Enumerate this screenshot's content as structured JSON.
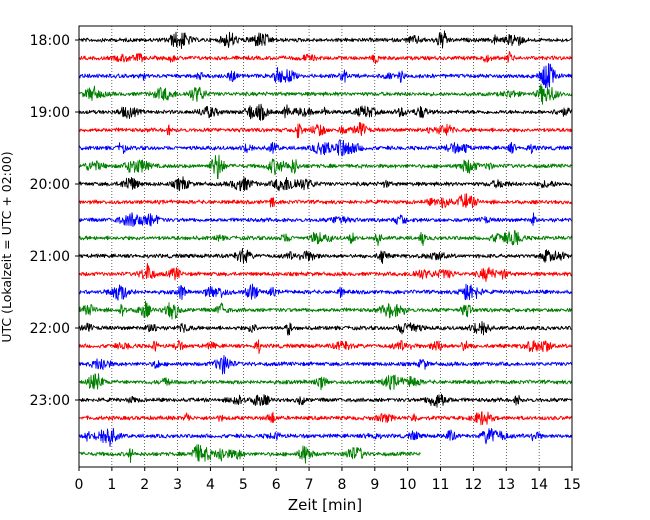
{
  "chart_data": {
    "type": "line",
    "chart_kind": "helicorder",
    "xlabel": "Zeit  [min]",
    "ylabel": "UTC (Lokalzeit = UTC + 02:00)",
    "xlim": [
      0,
      15
    ],
    "x_ticks": [
      "0",
      "1",
      "2",
      "3",
      "4",
      "5",
      "6",
      "7",
      "8",
      "9",
      "10",
      "11",
      "12",
      "13",
      "14",
      "15"
    ],
    "y_tick_labels": [
      "18:00",
      "19:00",
      "20:00",
      "21:00",
      "22:00",
      "23:00"
    ],
    "grid": "vertical dotted lines at each minute",
    "trace_colors": [
      "#000000",
      "#ff0000",
      "#0000ff",
      "#008000"
    ],
    "rows": [
      {
        "start": "18:00",
        "color": "#000000",
        "end_min": 15
      },
      {
        "start": "18:15",
        "color": "#ff0000",
        "end_min": 15
      },
      {
        "start": "18:30",
        "color": "#0000ff",
        "end_min": 15
      },
      {
        "start": "18:45",
        "color": "#008000",
        "end_min": 15
      },
      {
        "start": "19:00",
        "color": "#000000",
        "end_min": 15
      },
      {
        "start": "19:15",
        "color": "#ff0000",
        "end_min": 15
      },
      {
        "start": "19:30",
        "color": "#0000ff",
        "end_min": 15
      },
      {
        "start": "19:45",
        "color": "#008000",
        "end_min": 15
      },
      {
        "start": "20:00",
        "color": "#000000",
        "end_min": 15
      },
      {
        "start": "20:15",
        "color": "#ff0000",
        "end_min": 15
      },
      {
        "start": "20:30",
        "color": "#0000ff",
        "end_min": 15
      },
      {
        "start": "20:45",
        "color": "#008000",
        "end_min": 15
      },
      {
        "start": "21:00",
        "color": "#000000",
        "end_min": 15
      },
      {
        "start": "21:15",
        "color": "#ff0000",
        "end_min": 15
      },
      {
        "start": "21:30",
        "color": "#0000ff",
        "end_min": 15
      },
      {
        "start": "21:45",
        "color": "#008000",
        "end_min": 15
      },
      {
        "start": "22:00",
        "color": "#000000",
        "end_min": 15
      },
      {
        "start": "22:15",
        "color": "#ff0000",
        "end_min": 15
      },
      {
        "start": "22:30",
        "color": "#0000ff",
        "end_min": 15
      },
      {
        "start": "22:45",
        "color": "#008000",
        "end_min": 15
      },
      {
        "start": "23:00",
        "color": "#000000",
        "end_min": 15
      },
      {
        "start": "23:15",
        "color": "#ff0000",
        "end_min": 15
      },
      {
        "start": "23:30",
        "color": "#0000ff",
        "end_min": 15
      },
      {
        "start": "23:45",
        "color": "#008000",
        "end_min": 10.4
      }
    ]
  }
}
